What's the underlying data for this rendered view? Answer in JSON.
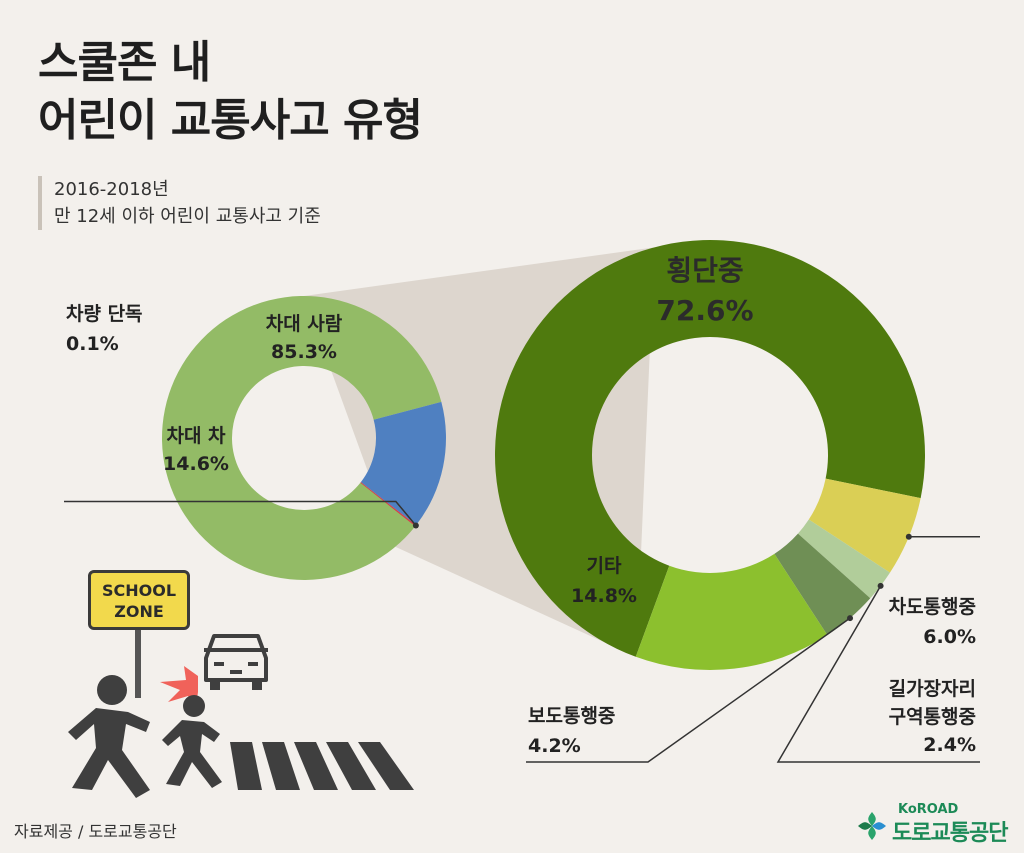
{
  "title": {
    "line1": "스쿨존 내",
    "line2": "어린이 교통사고 유형"
  },
  "subtitle": {
    "line1": "2016-2018년",
    "line2": "만 12세 이하 어린이 교통사고 기준"
  },
  "colors": {
    "background": "#f3f0ec",
    "car_vs_person": "#93bb66",
    "car_vs_car": "#4f80c1",
    "single_vehicle": "#d83a4a",
    "crossing": "#4f7a0e",
    "other": "#8cc02e",
    "sidewalk": "#6f8f55",
    "edge_zone": "#b1cd9a",
    "roadway": "#dacf55"
  },
  "chart_data": [
    {
      "type": "pie",
      "slices": [
        {
          "label": "차대 사람",
          "value": 85.3,
          "value_label": "85.3%"
        },
        {
          "label": "차대 차",
          "value": 14.6,
          "value_label": "14.6%"
        },
        {
          "label": "차량 단독",
          "value": 0.1,
          "value_label": "0.1%"
        }
      ]
    },
    {
      "type": "pie",
      "slices": [
        {
          "label": "횡단중",
          "value": 72.6,
          "value_label": "72.6%"
        },
        {
          "label": "차도통행중",
          "value": 6.0,
          "value_label": "6.0%"
        },
        {
          "label": "길가장자리구역통행중",
          "label_lines": [
            "길가장자리",
            "구역통행중"
          ],
          "value": 2.4,
          "value_label": "2.4%"
        },
        {
          "label": "보도통행중",
          "value": 4.2,
          "value_label": "4.2%"
        },
        {
          "label": "기타",
          "value": 14.8,
          "value_label": "14.8%"
        }
      ]
    }
  ],
  "illustration": {
    "sign_line1": "SCHOOL",
    "sign_line2": "ZONE"
  },
  "footer": {
    "source": "자료제공 / 도로교통공단",
    "brand_en": "KoROAD",
    "brand_ko": "도로교통공단"
  }
}
